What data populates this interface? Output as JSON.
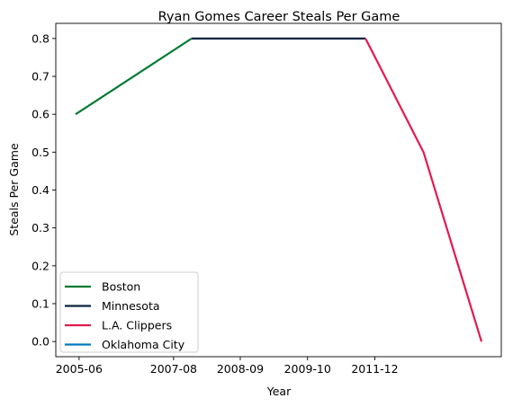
{
  "chart_data": {
    "type": "line",
    "title": "Ryan Gomes Career Steals Per Game",
    "xlabel": "Year",
    "ylabel": "Steals Per Game",
    "x_tick_labels": [
      "2005-06",
      "2007-08",
      "2008-09",
      "2009-10",
      "2011-12"
    ],
    "ylim": [
      -0.04,
      0.84
    ],
    "y_ticks": [
      0.0,
      0.1,
      0.2,
      0.3,
      0.4,
      0.5,
      0.6,
      0.7,
      0.8
    ],
    "y_tick_labels": [
      "0.0",
      "0.1",
      "0.2",
      "0.3",
      "0.4",
      "0.5",
      "0.6",
      "0.7",
      "0.8"
    ],
    "grid": false,
    "legend_position": "lower-left",
    "series": [
      {
        "name": "Boston",
        "color": "#007a33",
        "points": [
          [
            0,
            0.6
          ],
          [
            1,
            0.7
          ],
          [
            2,
            0.8
          ]
        ]
      },
      {
        "name": "Minnesota",
        "color": "#0c2340",
        "points": [
          [
            2,
            0.8
          ],
          [
            3,
            0.8
          ],
          [
            4,
            0.8
          ],
          [
            5,
            0.8
          ]
        ]
      },
      {
        "name": "L.A. Clippers",
        "color": "#e31a4f",
        "points": [
          [
            5,
            0.8
          ],
          [
            6,
            0.5
          ],
          [
            7,
            0.0
          ]
        ]
      },
      {
        "name": "Oklahoma City",
        "color": "#007ac1",
        "points": []
      }
    ]
  }
}
